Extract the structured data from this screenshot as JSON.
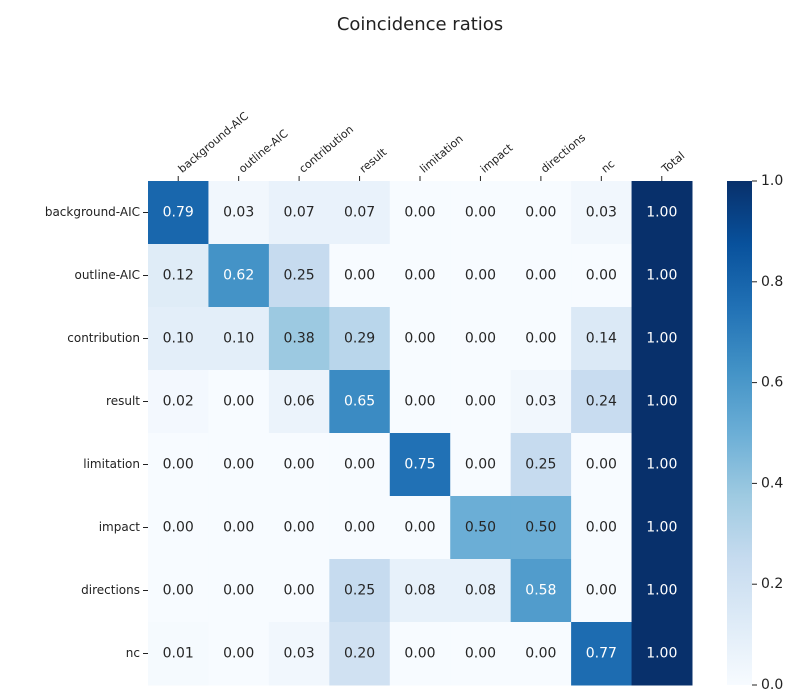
{
  "chart_data": {
    "type": "heatmap",
    "title": "Coincidence ratios",
    "x_categories": [
      "background-AIC",
      "outline-AIC",
      "contribution",
      "result",
      "limitation",
      "impact",
      "directions",
      "nc",
      "Total"
    ],
    "y_categories": [
      "background-AIC",
      "outline-AIC",
      "contribution",
      "result",
      "limitation",
      "impact",
      "directions",
      "nc"
    ],
    "values": [
      [
        0.79,
        0.03,
        0.07,
        0.07,
        0,
        0,
        0,
        0.03,
        1
      ],
      [
        0.12,
        0.62,
        0.25,
        0,
        0,
        0,
        0,
        0,
        1
      ],
      [
        0.1,
        0.1,
        0.38,
        0.29,
        0,
        0,
        0,
        0.14,
        1
      ],
      [
        0.02,
        0,
        0.06,
        0.65,
        0,
        0,
        0.03,
        0.24,
        1
      ],
      [
        0,
        0,
        0,
        0,
        0.75,
        0,
        0.25,
        0,
        1
      ],
      [
        0,
        0,
        0,
        0,
        0,
        0.5,
        0.5,
        0,
        1
      ],
      [
        0,
        0,
        0,
        0.25,
        0.08,
        0.08,
        0.58,
        0,
        1
      ],
      [
        0.01,
        0,
        0.03,
        0.2,
        0,
        0,
        0,
        0.77,
        1
      ]
    ],
    "value_labels": [
      [
        "0.79",
        "0.03",
        "0.07",
        "0.07",
        "0.00",
        "0.00",
        "0.00",
        "0.03",
        "1.00"
      ],
      [
        "0.12",
        "0.62",
        "0.25",
        "0.00",
        "0.00",
        "0.00",
        "0.00",
        "0.00",
        "1.00"
      ],
      [
        "0.10",
        "0.10",
        "0.38",
        "0.29",
        "0.00",
        "0.00",
        "0.00",
        "0.14",
        "1.00"
      ],
      [
        "0.02",
        "0.00",
        "0.06",
        "0.65",
        "0.00",
        "0.00",
        "0.03",
        "0.24",
        "1.00"
      ],
      [
        "0.00",
        "0.00",
        "0.00",
        "0.00",
        "0.75",
        "0.00",
        "0.25",
        "0.00",
        "1.00"
      ],
      [
        "0.00",
        "0.00",
        "0.00",
        "0.00",
        "0.00",
        "0.50",
        "0.50",
        "0.00",
        "1.00"
      ],
      [
        "0.00",
        "0.00",
        "0.00",
        "0.25",
        "0.08",
        "0.08",
        "0.58",
        "0.00",
        "1.00"
      ],
      [
        "0.01",
        "0.00",
        "0.03",
        "0.20",
        "0.00",
        "0.00",
        "0.00",
        "0.77",
        "1.00"
      ]
    ],
    "colormap": "Blues",
    "zlim": [
      0,
      1
    ],
    "zticks": [
      {
        "value": 0,
        "label": "0.0"
      },
      {
        "value": 0.2,
        "label": "0.2"
      },
      {
        "value": 0.4,
        "label": "0.4"
      },
      {
        "value": 0.6,
        "label": "0.6"
      },
      {
        "value": 0.8,
        "label": "0.8"
      },
      {
        "value": 1,
        "label": "1.0"
      }
    ]
  }
}
